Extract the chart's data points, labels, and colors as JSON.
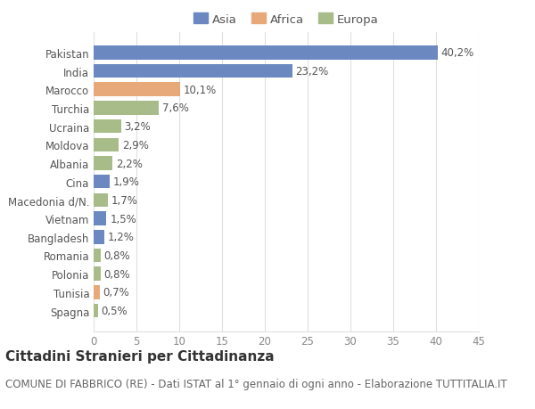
{
  "categories": [
    "Pakistan",
    "India",
    "Marocco",
    "Turchia",
    "Ucraina",
    "Moldova",
    "Albania",
    "Cina",
    "Macedonia d/N.",
    "Vietnam",
    "Bangladesh",
    "Romania",
    "Polonia",
    "Tunisia",
    "Spagna"
  ],
  "values": [
    40.2,
    23.2,
    10.1,
    7.6,
    3.2,
    2.9,
    2.2,
    1.9,
    1.7,
    1.5,
    1.2,
    0.8,
    0.8,
    0.7,
    0.5
  ],
  "continents": [
    "Asia",
    "Asia",
    "Africa",
    "Europa",
    "Europa",
    "Europa",
    "Europa",
    "Asia",
    "Europa",
    "Asia",
    "Asia",
    "Europa",
    "Europa",
    "Africa",
    "Europa"
  ],
  "colors": {
    "Asia": "#6b88c0",
    "Africa": "#e8a97a",
    "Europa": "#a8bc8a"
  },
  "labels": [
    "40,2%",
    "23,2%",
    "10,1%",
    "7,6%",
    "3,2%",
    "2,9%",
    "2,2%",
    "1,9%",
    "1,7%",
    "1,5%",
    "1,2%",
    "0,8%",
    "0,8%",
    "0,7%",
    "0,5%"
  ],
  "xlim": [
    0,
    45
  ],
  "xticks": [
    0,
    5,
    10,
    15,
    20,
    25,
    30,
    35,
    40,
    45
  ],
  "title": "Cittadini Stranieri per Cittadinanza",
  "subtitle": "COMUNE DI FABBRICO (RE) - Dati ISTAT al 1° gennaio di ogni anno - Elaborazione TUTTITALIA.IT",
  "background_color": "#ffffff",
  "grid_color": "#e0e0e0",
  "bar_height": 0.75,
  "title_fontsize": 11,
  "subtitle_fontsize": 8.5,
  "tick_fontsize": 8.5,
  "label_fontsize": 8.5,
  "legend_fontsize": 9.5
}
